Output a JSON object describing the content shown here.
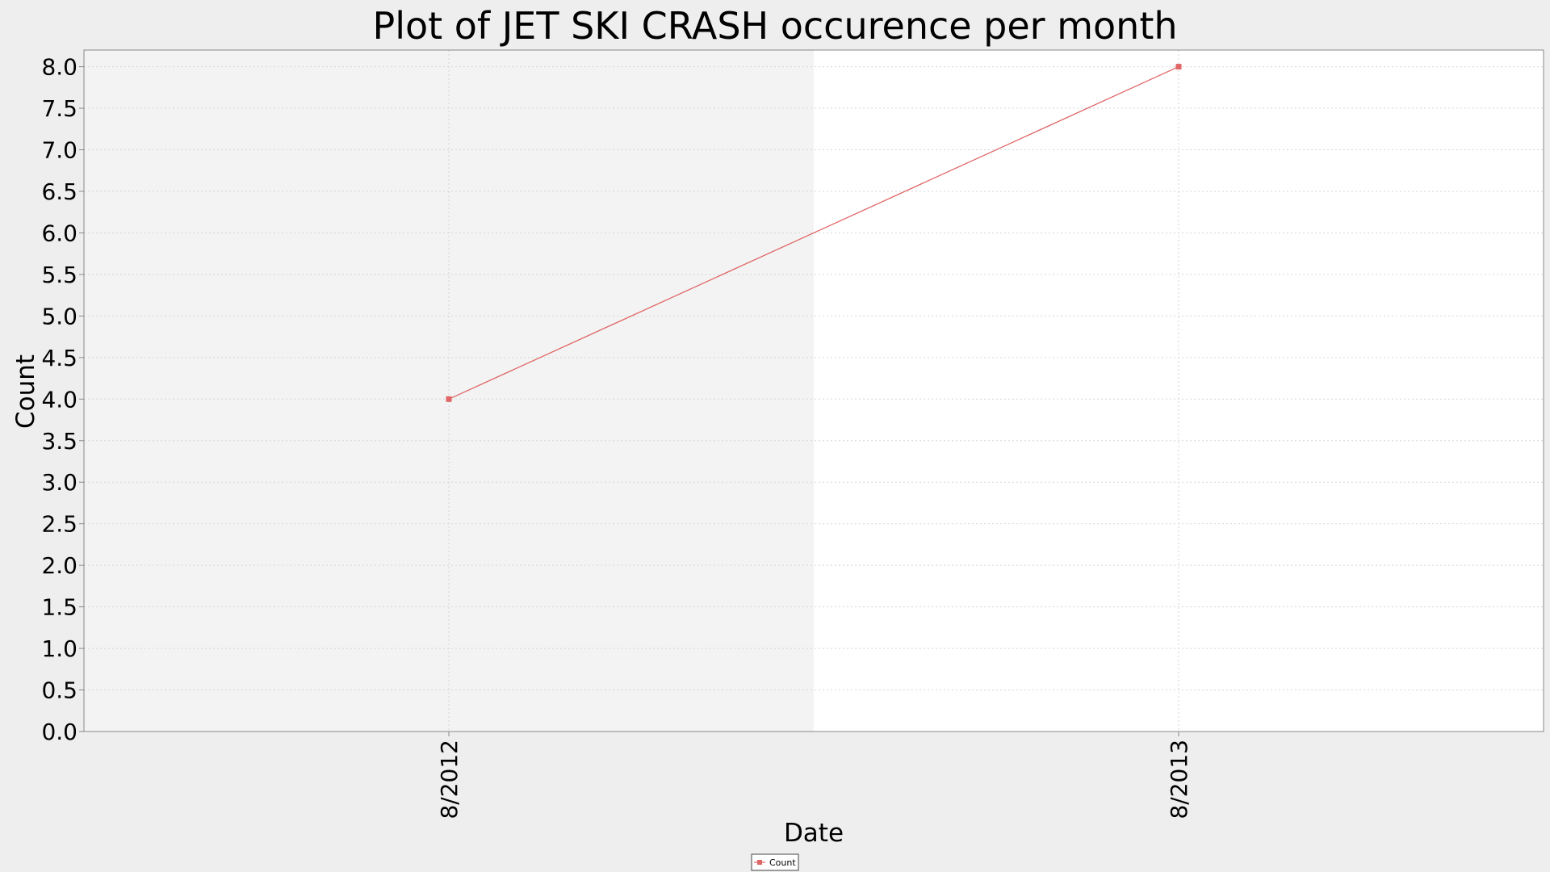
{
  "chart_data": {
    "type": "line",
    "title": "Plot of JET SKI CRASH occurence per month",
    "xlabel": "Date",
    "ylabel": "Count",
    "categories": [
      "8/2012",
      "8/2013"
    ],
    "series": [
      {
        "name": "Count",
        "values": [
          4,
          8
        ],
        "color": "#e06666"
      }
    ],
    "ylim": [
      0,
      8.2
    ],
    "yticks": [
      "0.0",
      "0.5",
      "1.0",
      "1.5",
      "2.0",
      "2.5",
      "3.0",
      "3.5",
      "4.0",
      "4.5",
      "5.0",
      "5.5",
      "6.0",
      "6.5",
      "7.0",
      "7.5",
      "8.0"
    ],
    "grid": true,
    "legend": "bottom-center",
    "colors": {
      "page_background": "#eeeeee",
      "plot_band_left": "#f3f3f3",
      "plot_band_right": "#ffffff",
      "gridline": "#d6d6d6",
      "axis": "#888888"
    }
  }
}
